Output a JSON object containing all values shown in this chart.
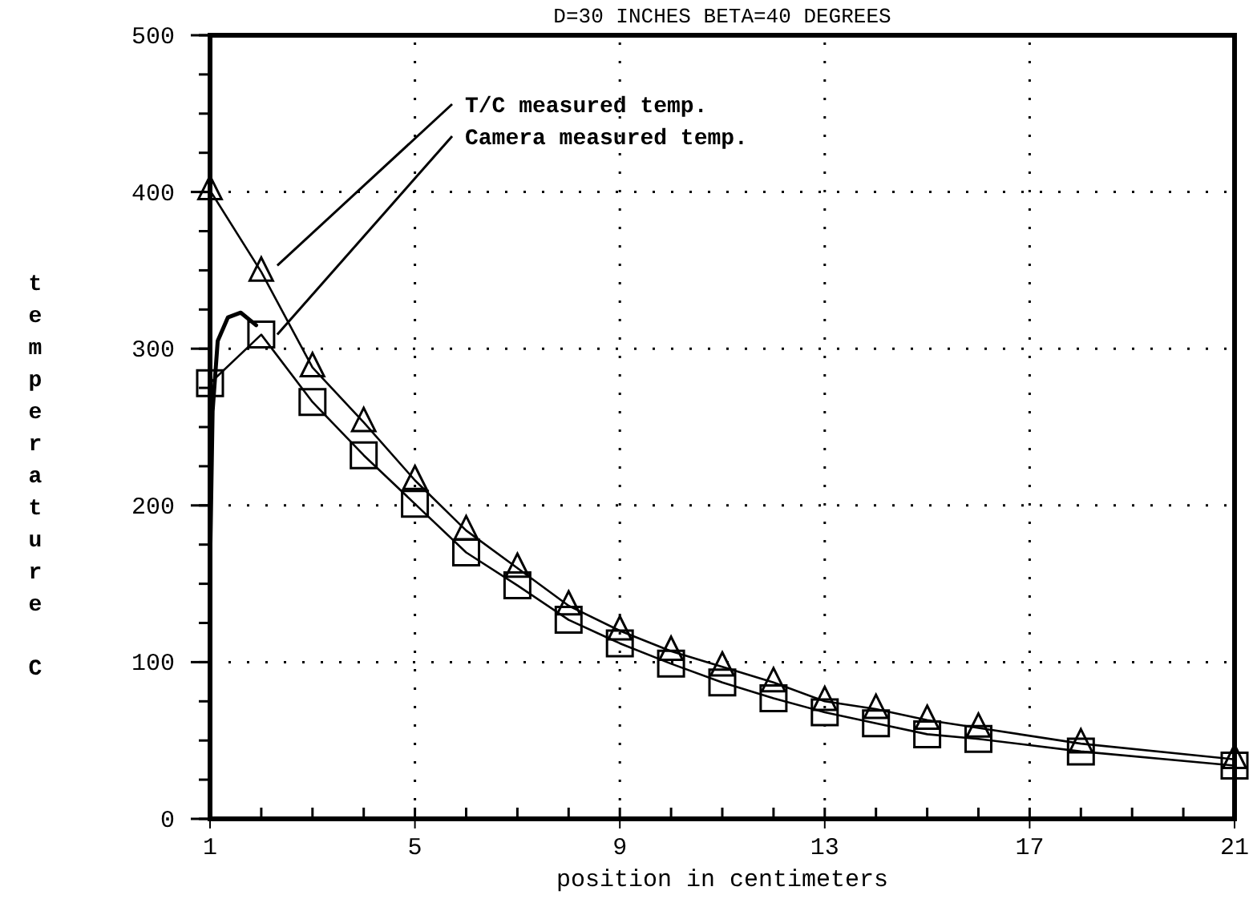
{
  "chart_data": {
    "type": "line",
    "title": "D=30 INCHES  BETA=40 DEGREES",
    "xlabel": "position in centimeters",
    "ylabel": "temperature  C",
    "xlim": [
      1,
      21
    ],
    "xticks": [
      1,
      5,
      9,
      13,
      17,
      21
    ],
    "ylim": [
      0,
      500
    ],
    "yticks": [
      0,
      100,
      200,
      300,
      400,
      500
    ],
    "grid": true,
    "legend": "top",
    "series": [
      {
        "name": "T/C measured temp.",
        "color": "#000000",
        "marker": "triangle",
        "x": [
          1,
          2,
          3,
          4,
          5,
          6,
          7,
          8,
          9,
          10,
          11,
          12,
          13,
          14,
          15,
          16,
          18,
          21
        ],
        "values": [
          401,
          349,
          288,
          253,
          216,
          184,
          160,
          136,
          120,
          107,
          97,
          87,
          75,
          70,
          63,
          58,
          48,
          38
        ]
      },
      {
        "name": "Camera measured temp.",
        "color": "#000000",
        "marker": "square",
        "x": [
          1,
          2,
          3,
          4,
          5,
          6,
          7,
          8,
          9,
          10,
          11,
          12,
          13,
          14,
          15,
          16,
          18,
          21
        ],
        "values": [
          278,
          309,
          266,
          232,
          201,
          170,
          149,
          127,
          112,
          99,
          87,
          77,
          68,
          61,
          54,
          51,
          43,
          34
        ]
      },
      {
        "color": "#000000",
        "marker": "none",
        "x": [
          1,
          1.05,
          1.15,
          1.35,
          1.6,
          1.9
        ],
        "values": [
          160,
          260,
          305,
          320,
          323,
          315
        ]
      }
    ]
  }
}
